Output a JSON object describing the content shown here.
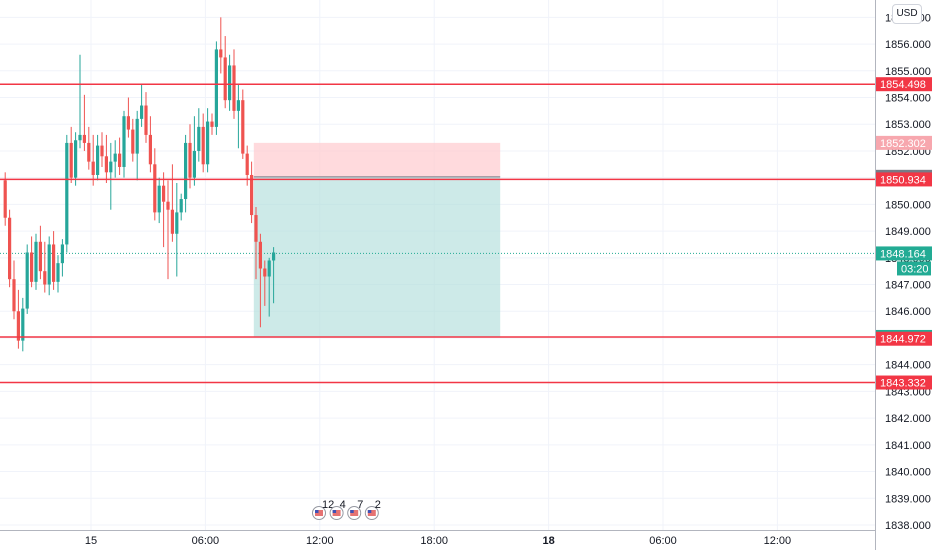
{
  "chart_data": {
    "type": "candlestick",
    "xlabel": "",
    "ylabel": "",
    "ylim": [
      1837.85,
      1857.35
    ],
    "currency": "USD",
    "y_ticks": [
      "1838.000",
      "1839.000",
      "1840.000",
      "1841.000",
      "1842.000",
      "1843.000",
      "1844.000",
      "1845.000",
      "1846.000",
      "1847.000",
      "1848.000",
      "1849.000",
      "1850.000",
      "1851.000",
      "1852.000",
      "1853.000",
      "1854.000",
      "1855.000",
      "1856.000",
      "1857.000"
    ],
    "x_ticks": [
      {
        "label": "15",
        "bar": 20,
        "bold": false
      },
      {
        "label": "06:00",
        "bar": 46,
        "bold": false
      },
      {
        "label": "12:00",
        "bar": 72,
        "bold": false
      },
      {
        "label": "18:00",
        "bar": 98,
        "bold": false
      },
      {
        "label": "18",
        "bar": 124,
        "bold": true
      },
      {
        "label": "06:00",
        "bar": 150,
        "bold": false
      },
      {
        "label": "12:00",
        "bar": 176,
        "bold": false
      }
    ],
    "candles": [
      [
        1850.9,
        1851.2,
        1849.2,
        1849.5
      ],
      [
        1849.5,
        1849.8,
        1846.9,
        1847.2
      ],
      [
        1847.2,
        1847.9,
        1845.7,
        1846.0
      ],
      [
        1846.0,
        1846.8,
        1844.6,
        1844.9
      ],
      [
        1844.9,
        1846.5,
        1844.5,
        1846.1
      ],
      [
        1846.1,
        1848.5,
        1845.9,
        1848.2
      ],
      [
        1848.2,
        1848.8,
        1846.9,
        1847.1
      ],
      [
        1847.1,
        1848.9,
        1846.8,
        1848.6
      ],
      [
        1848.6,
        1849.2,
        1847.2,
        1847.5
      ],
      [
        1847.5,
        1848.6,
        1846.7,
        1847.0
      ],
      [
        1847.0,
        1848.8,
        1846.6,
        1848.5
      ],
      [
        1848.5,
        1849.0,
        1846.8,
        1847.1
      ],
      [
        1847.1,
        1848.1,
        1846.7,
        1847.8
      ],
      [
        1847.8,
        1848.7,
        1847.3,
        1848.5
      ],
      [
        1848.5,
        1852.6,
        1848.2,
        1852.3
      ],
      [
        1852.3,
        1852.9,
        1850.8,
        1851.0
      ],
      [
        1851.0,
        1852.7,
        1850.7,
        1852.4
      ],
      [
        1852.4,
        1855.6,
        1852.1,
        1852.6
      ],
      [
        1852.6,
        1854.1,
        1852.0,
        1852.3
      ],
      [
        1852.3,
        1852.9,
        1851.3,
        1851.6
      ],
      [
        1851.6,
        1852.6,
        1850.7,
        1851.1
      ],
      [
        1851.1,
        1852.6,
        1850.9,
        1852.2
      ],
      [
        1852.2,
        1852.7,
        1851.4,
        1851.8
      ],
      [
        1851.8,
        1852.6,
        1850.8,
        1851.2
      ],
      [
        1851.2,
        1852.3,
        1849.8,
        1851.6
      ],
      [
        1851.6,
        1852.4,
        1851.0,
        1851.9
      ],
      [
        1851.9,
        1852.5,
        1851.1,
        1851.4
      ],
      [
        1851.4,
        1853.5,
        1851.0,
        1853.3
      ],
      [
        1853.3,
        1854.0,
        1852.5,
        1852.8
      ],
      [
        1852.8,
        1853.2,
        1851.6,
        1851.9
      ],
      [
        1851.9,
        1853.5,
        1850.9,
        1853.2
      ],
      [
        1853.2,
        1854.5,
        1852.9,
        1853.7
      ],
      [
        1853.7,
        1854.2,
        1852.3,
        1852.6
      ],
      [
        1852.6,
        1853.3,
        1851.2,
        1851.5
      ],
      [
        1851.5,
        1852.1,
        1849.4,
        1849.7
      ],
      [
        1849.7,
        1851.0,
        1849.3,
        1850.7
      ],
      [
        1850.7,
        1851.2,
        1848.4,
        1850.1
      ],
      [
        1850.1,
        1850.9,
        1847.2,
        1849.8
      ],
      [
        1849.8,
        1851.5,
        1848.6,
        1848.9
      ],
      [
        1848.9,
        1850.8,
        1847.3,
        1849.7
      ],
      [
        1849.7,
        1850.4,
        1849.4,
        1850.2
      ],
      [
        1850.2,
        1852.6,
        1849.7,
        1852.3
      ],
      [
        1852.3,
        1853.0,
        1850.6,
        1851.0
      ],
      [
        1851.0,
        1853.3,
        1850.7,
        1852.0
      ],
      [
        1852.0,
        1853.6,
        1851.6,
        1852.9
      ],
      [
        1852.9,
        1853.4,
        1851.2,
        1851.5
      ],
      [
        1851.5,
        1853.6,
        1851.2,
        1853.1
      ],
      [
        1853.1,
        1853.4,
        1852.6,
        1852.9
      ],
      [
        1852.9,
        1856.1,
        1852.6,
        1855.8
      ],
      [
        1855.8,
        1857.0,
        1854.9,
        1855.5
      ],
      [
        1855.5,
        1856.3,
        1853.6,
        1853.9
      ],
      [
        1853.9,
        1855.6,
        1853.5,
        1855.2
      ],
      [
        1855.2,
        1855.8,
        1853.2,
        1853.5
      ],
      [
        1853.5,
        1854.5,
        1852.1,
        1853.9
      ],
      [
        1853.9,
        1854.3,
        1851.7,
        1851.9
      ],
      [
        1851.9,
        1852.2,
        1850.7,
        1851.1
      ],
      [
        1851.1,
        1851.6,
        1849.3,
        1849.6
      ],
      [
        1849.6,
        1849.9,
        1847.2,
        1848.6
      ],
      [
        1848.6,
        1848.9,
        1845.4,
        1847.6
      ],
      [
        1847.6,
        1847.9,
        1846.2,
        1847.3
      ],
      [
        1847.3,
        1848.0,
        1845.8,
        1847.9
      ],
      [
        1847.9,
        1848.4,
        1846.3,
        1848.2
      ]
    ],
    "horizontal_lines": [
      {
        "price": 1854.498,
        "label": "1854.498",
        "color": "#f23645"
      },
      {
        "price": 1850.934,
        "label": "1850.934",
        "color": "#f23645"
      },
      {
        "price": 1845.038,
        "label": "1845.038",
        "color": "#f23645"
      },
      {
        "price": 1843.332,
        "label": "1843.332",
        "color": "#f23645"
      }
    ],
    "position_tool": {
      "entry": 1851.031,
      "target": 1845.038,
      "stop": 1852.302,
      "start_bar": 57,
      "end_bar": 113,
      "profit_color": "#b2dfdb",
      "loss_color": "#ffcdd2"
    },
    "price_labels": [
      {
        "price": 1852.302,
        "text": "1852.302",
        "color": "#f7a7ae",
        "text_color": "#ffffff"
      },
      {
        "price": 1851.031,
        "text": "1851.031",
        "color": "#787b86",
        "text_color": "#ffffff"
      },
      {
        "price": 1850.934,
        "text": "1850.934",
        "color": "#f23645",
        "text_color": "#ffffff"
      },
      {
        "price": 1845.038,
        "text": "1845.038",
        "color": "#22ab94",
        "text_color": "#ffffff"
      },
      {
        "price": 1844.972,
        "text": "1844.972",
        "color": "#f23645",
        "text_color": "#ffffff"
      },
      {
        "price": 1843.332,
        "text": "1843.332",
        "color": "#f23645",
        "text_color": "#ffffff"
      },
      {
        "price": 1854.498,
        "text": "1854.498",
        "color": "#f23645",
        "text_color": "#ffffff"
      }
    ],
    "current_price": {
      "price": 1848.164,
      "label": "1848.164",
      "countdown": "03:20",
      "color": "#22ab94"
    },
    "events": [
      {
        "bar": 70,
        "count": "12"
      },
      {
        "bar": 74,
        "count": "4"
      },
      {
        "bar": 78,
        "count": "7"
      },
      {
        "bar": 82,
        "count": "2"
      }
    ],
    "colors": {
      "up": "#26a69a",
      "down": "#ef5350",
      "grid": "#f0f3fa",
      "axis": "#131722",
      "border": "#b2b5be"
    }
  }
}
